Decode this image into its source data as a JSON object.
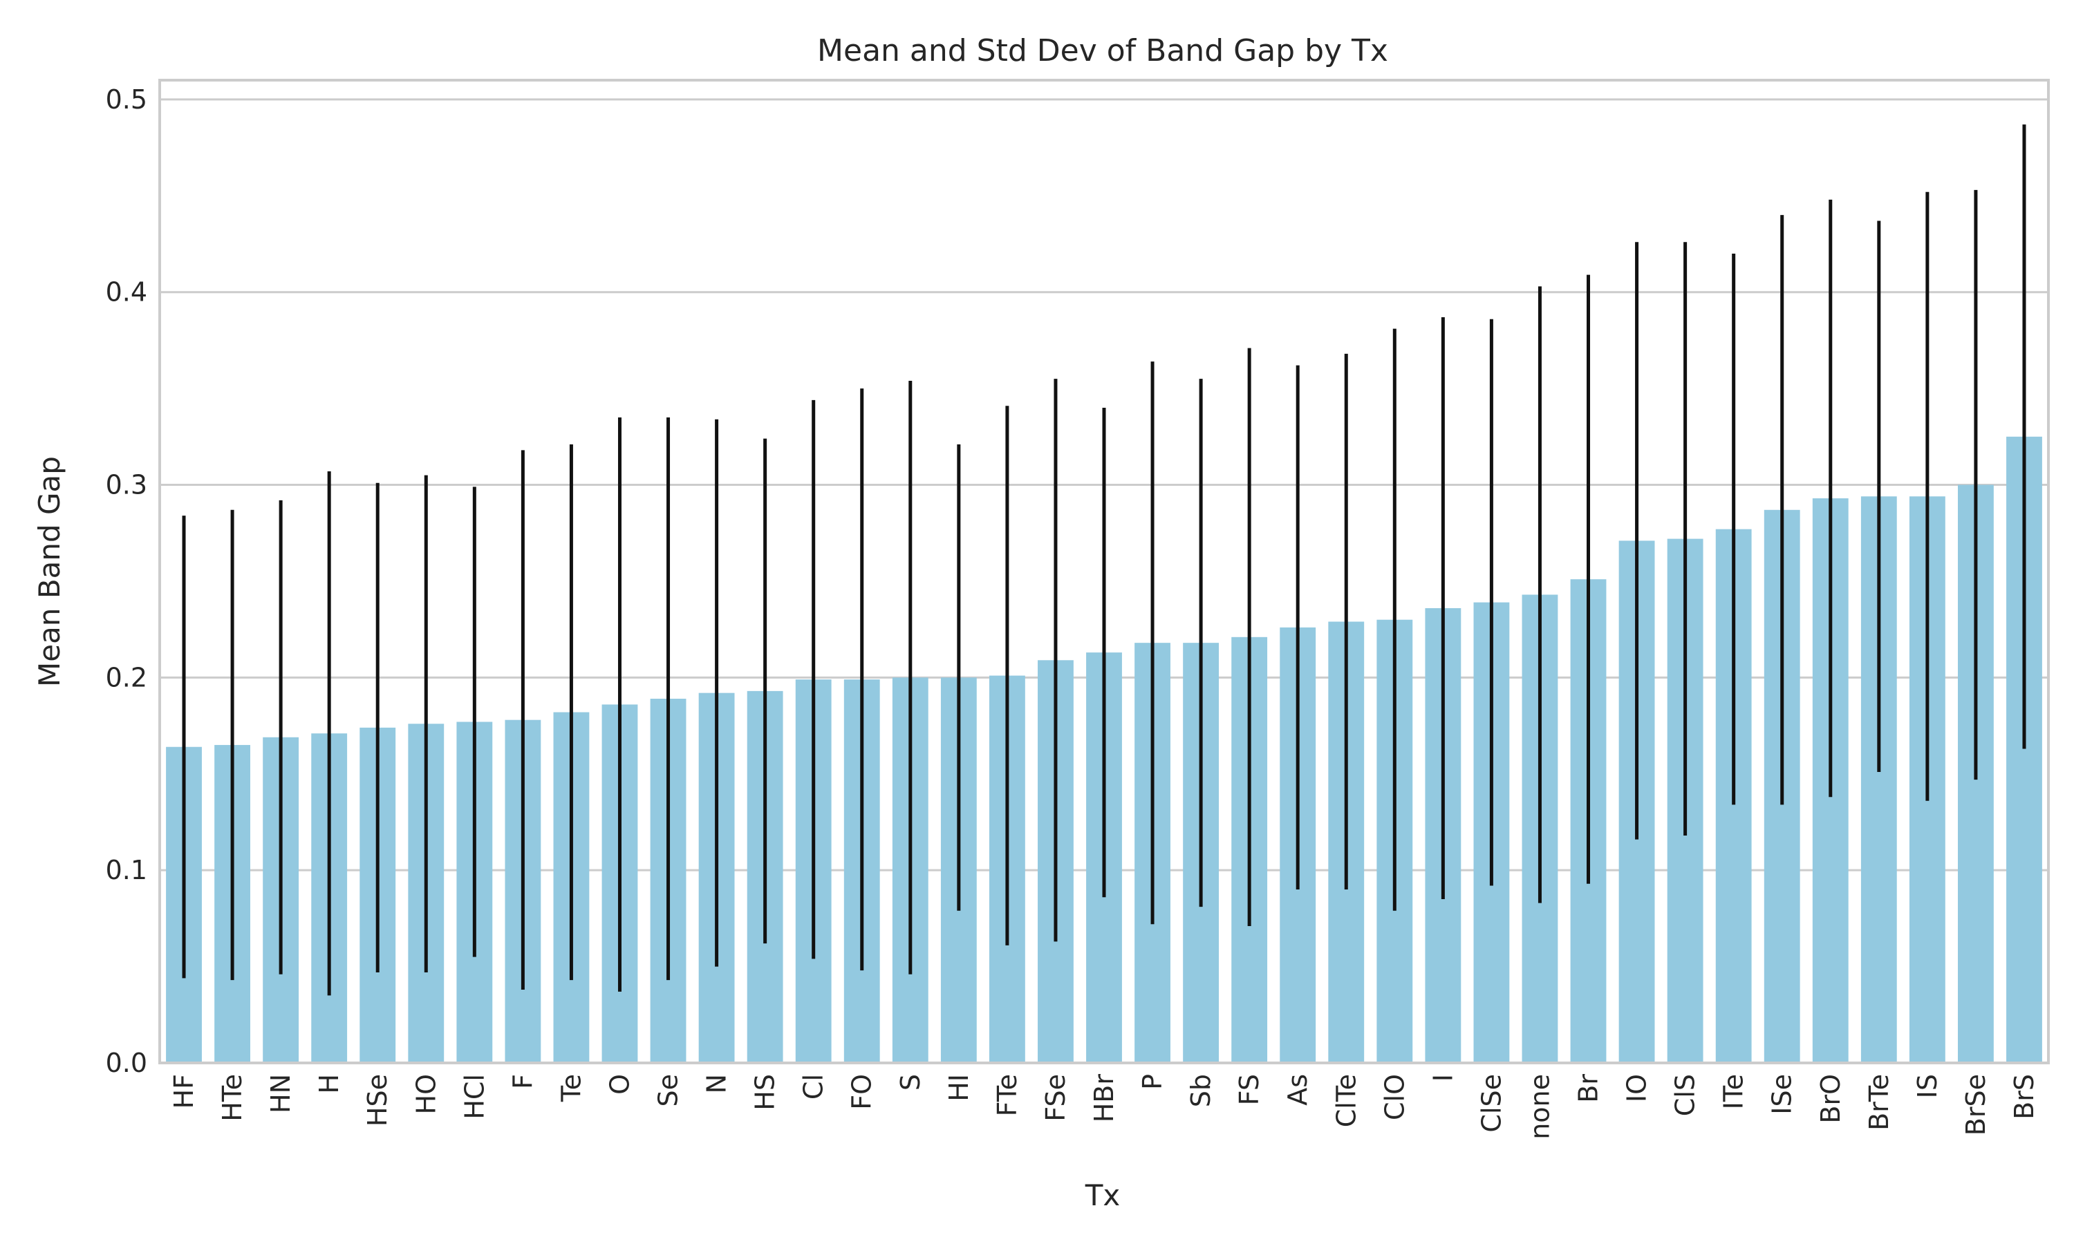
{
  "chart_data": {
    "type": "bar",
    "title": "Mean and Std Dev of Band Gap by Tx",
    "xlabel": "Tx",
    "ylabel": "Mean Band Gap",
    "ylim": [
      0,
      0.51
    ],
    "yticks": [
      "0.0",
      "0.1",
      "0.2",
      "0.3",
      "0.4",
      "0.5"
    ],
    "grid": true,
    "bar_color": "#93c9e0",
    "errorbar_color": "#111111",
    "categories": [
      "HF",
      "HTe",
      "HN",
      "H",
      "HSe",
      "HO",
      "HCl",
      "F",
      "Te",
      "O",
      "Se",
      "N",
      "HS",
      "Cl",
      "FO",
      "S",
      "HI",
      "FTe",
      "FSe",
      "HBr",
      "P",
      "Sb",
      "FS",
      "As",
      "ClTe",
      "ClO",
      "I",
      "ClSe",
      "none",
      "Br",
      "IO",
      "ClS",
      "ITe",
      "ISe",
      "BrO",
      "BrTe",
      "IS",
      "BrSe",
      "BrS"
    ],
    "values": [
      0.164,
      0.165,
      0.169,
      0.171,
      0.174,
      0.176,
      0.177,
      0.178,
      0.182,
      0.186,
      0.189,
      0.192,
      0.193,
      0.199,
      0.199,
      0.2,
      0.2,
      0.201,
      0.209,
      0.213,
      0.218,
      0.218,
      0.221,
      0.226,
      0.229,
      0.23,
      0.236,
      0.239,
      0.243,
      0.251,
      0.271,
      0.272,
      0.277,
      0.287,
      0.293,
      0.294,
      0.294,
      0.3,
      0.325
    ],
    "std": [
      0.12,
      0.122,
      0.123,
      0.136,
      0.127,
      0.129,
      0.122,
      0.14,
      0.139,
      0.149,
      0.146,
      0.142,
      0.131,
      0.145,
      0.151,
      0.154,
      0.121,
      0.14,
      0.146,
      0.127,
      0.146,
      0.137,
      0.15,
      0.136,
      0.139,
      0.151,
      0.151,
      0.147,
      0.16,
      0.158,
      0.155,
      0.154,
      0.143,
      0.153,
      0.155,
      0.143,
      0.158,
      0.153,
      0.162
    ]
  }
}
